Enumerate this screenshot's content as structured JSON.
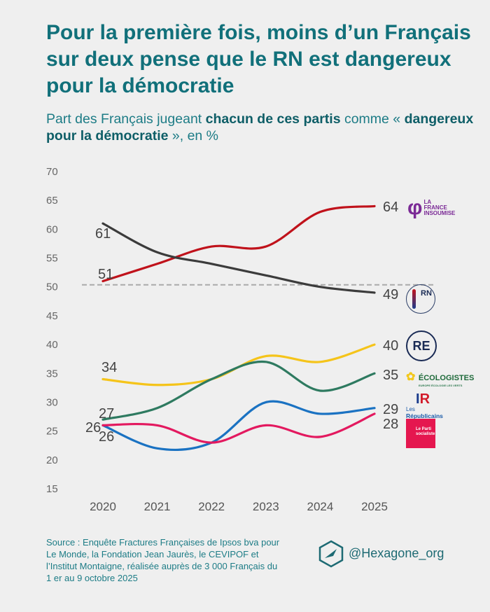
{
  "title": "Pour la première fois, moins d’un Français sur deux pense que le RN est dangereux pour la démocratie",
  "subtitle": {
    "part1": "Part des Français jugeant ",
    "bold1": "chacun de ces partis",
    "part2": " comme « ",
    "bold2": "dangereux pour la démocratie",
    "part3": " », en %"
  },
  "chart_data": {
    "type": "line",
    "x": [
      2020,
      2021,
      2022,
      2023,
      2024,
      2025
    ],
    "ylim": [
      15,
      70
    ],
    "yticks": [
      70,
      65,
      60,
      55,
      50,
      45,
      40,
      35,
      30,
      25,
      20,
      15
    ],
    "reference_line": 50,
    "grid": false,
    "series": [
      {
        "party": "La France Insoumise",
        "color": "#c0121b",
        "values": [
          51,
          54,
          57,
          57,
          63,
          64
        ]
      },
      {
        "party": "RN",
        "color": "#3b3b3b",
        "values": [
          61,
          56,
          54,
          52,
          50,
          49
        ]
      },
      {
        "party": "RE",
        "color": "#f5c41a",
        "values": [
          34,
          33,
          34,
          38,
          37,
          40
        ]
      },
      {
        "party": "Les Écologistes",
        "color": "#2e7a60",
        "values": [
          27,
          29,
          34,
          37,
          32,
          35
        ]
      },
      {
        "party": "Les Républicains",
        "color": "#1a72c2",
        "values": [
          26,
          22,
          23,
          30,
          28,
          29
        ]
      },
      {
        "party": "Le Parti socialiste",
        "color": "#e3195f",
        "values": [
          26,
          26,
          23,
          26,
          24,
          28
        ]
      }
    ],
    "start_labels": [
      "51",
      "61",
      "34",
      "27",
      "26",
      "26"
    ],
    "end_labels": [
      "64",
      "49",
      "40",
      "35",
      "29",
      "28"
    ]
  },
  "logos": {
    "lfi": "LA FRANCE INSOUMISE",
    "rn": "RN",
    "re": "RE",
    "eco": "ÉCOLOGISTES",
    "eco_sub": "EUROPE ÉCOLOGIE LES VERTS",
    "lr_les": "Les",
    "lr": "Républicains",
    "ps": "Le Parti socialiste"
  },
  "source": "Source : Enquête Fractures Françaises de Ipsos bva pour Le Monde, la Fondation Jean Jaurès, le CEVIPOF et l’Institut Montaigne, réalisée auprès de 3 000 Français du 1 er au 9 octobre 2025",
  "handle": "@Hexagone_org"
}
